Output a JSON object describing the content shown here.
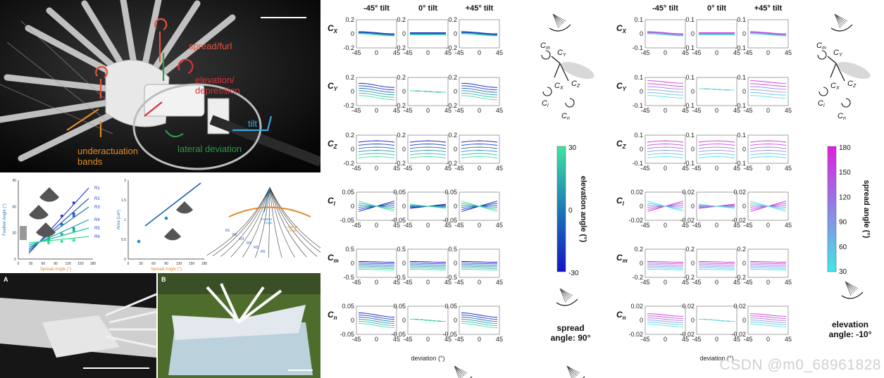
{
  "photo": {
    "labels": {
      "spread_furl": "spread/furl",
      "elevation": "elevation/\ndepression",
      "tilt": "tilt",
      "lateral": "lateral deviation",
      "underactuation": "underactuation\nbands"
    },
    "colors": {
      "spread": "#e8503c",
      "elevation": "#d8323a",
      "tilt": "#3aa7e0",
      "lateral": "#2e9a4c",
      "under": "#e08a2a"
    }
  },
  "feather_plot": {
    "ylabel": "Feather Angle (°)",
    "xlabel": "Spread Angle (°)",
    "xticks": [
      "0",
      "30",
      "60",
      "90",
      "120",
      "150",
      "180"
    ],
    "yticks": [
      "0",
      "30",
      "60",
      "90"
    ],
    "series": [
      "R1",
      "R2",
      "R3",
      "R4",
      "R5",
      "R6"
    ],
    "colors": [
      "#2b3fc8",
      "#2b56c8",
      "#1d74c2",
      "#1a9aa8",
      "#1fc19a",
      "#2fe08a"
    ]
  },
  "area_plot": {
    "ylabel": "Area (Lw²)",
    "xlabel": "Spread Angle (°)",
    "xticks": [
      "0",
      "30",
      "60",
      "90",
      "120",
      "150",
      "180"
    ],
    "yticks": [
      "0",
      "0.5",
      "1",
      "1.5",
      "2"
    ]
  },
  "schematic": {
    "rings": [
      "R1",
      "R2",
      "R3",
      "R4",
      "R5",
      "R6"
    ],
    "feather_angle": "Feather\nAngle",
    "spread_angle": "Spread\nAngle"
  },
  "photos_bottom": {
    "a": "A",
    "b": "B"
  },
  "grid": {
    "col_titles": [
      "-45° tilt",
      "0° tilt",
      "+45° tilt"
    ],
    "row_labels": [
      "C",
      "C",
      "C",
      "C",
      "C",
      "C"
    ],
    "row_subs": [
      "X",
      "Y",
      "Z",
      "l",
      "m",
      "n"
    ],
    "xticks": [
      "-45",
      "0",
      "45"
    ],
    "xlabel": "deviation (°)",
    "left": {
      "yticks": [
        [
          "0.2",
          "0",
          "-0.2"
        ],
        [
          "0.2",
          "0",
          "-0.2"
        ],
        [
          "0.2",
          "0",
          "-0.2"
        ],
        [
          "0.05",
          "0",
          "-0.05"
        ],
        [
          "0.5",
          "0",
          "-0.5"
        ],
        [
          "0.05",
          "0",
          "-0.05"
        ]
      ],
      "colorbar_title": "elevation angle (°)",
      "colorbar_ticks": [
        "30",
        "0",
        "-30"
      ],
      "fixed_label": "spread\nangle: 90°"
    },
    "right": {
      "yticks": [
        [
          "0.1",
          "0",
          "-0.1"
        ],
        [
          "0.1",
          "0",
          "-0.1"
        ],
        [
          "0.1",
          "0",
          "-0.1"
        ],
        [
          "0.02",
          "0",
          "-0.02"
        ],
        [
          "0.2",
          "0",
          "-0.2"
        ],
        [
          "0.02",
          "0",
          "-0.02"
        ]
      ],
      "colorbar_title": "spread angle (°)",
      "colorbar_ticks": [
        "180",
        "150",
        "120",
        "90",
        "60",
        "30"
      ],
      "fixed_label": "elevation\nangle: -10°"
    },
    "axes_labels": {
      "Cm": "C",
      "Cy": "C",
      "Cx": "C",
      "Cz": "C",
      "Cl": "C",
      "Cn": "C"
    }
  },
  "watermark": "CSDN @m0_68961828"
}
